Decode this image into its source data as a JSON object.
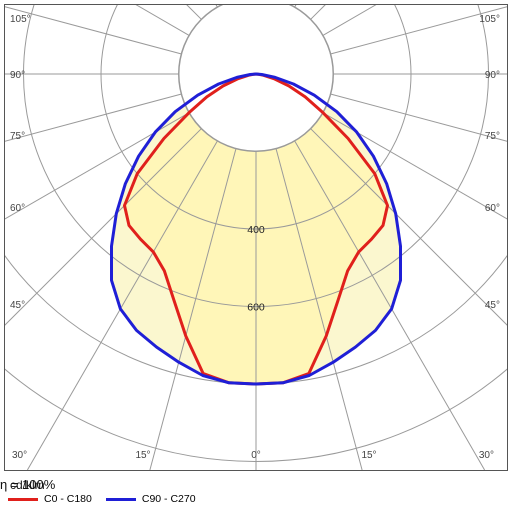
{
  "chart_data": {
    "type": "polar-line",
    "unit_label": "cd/klm",
    "efficiency_label": "η = 100%",
    "angle_ticks_left": [
      "105°",
      "90°",
      "75°",
      "60°",
      "45°",
      "30°",
      "15°"
    ],
    "angle_ticks_right": [
      "105°",
      "90°",
      "75°",
      "60°",
      "45°",
      "30°",
      "15°"
    ],
    "angle_tick_center": "0°",
    "radial_labels": [
      "400",
      "600"
    ],
    "radial_label_values": [
      400,
      600
    ],
    "ring_values": [
      200,
      400,
      600,
      800,
      1000
    ],
    "spoke_angles_deg": [
      15,
      30,
      45,
      60,
      75,
      90,
      105,
      120,
      135,
      150,
      165
    ],
    "grid": true,
    "series": [
      {
        "name": "C0 - C180",
        "color": "#e0201c",
        "angles_deg": [
          0,
          5,
          10,
          15,
          20,
          25,
          30,
          35,
          40,
          45,
          50,
          55,
          60,
          65,
          70,
          75,
          80,
          85,
          90
        ],
        "values": [
          800,
          800,
          785,
          700,
          620,
          560,
          530,
          520,
          510,
          480,
          400,
          290,
          200,
          140,
          90,
          50,
          20,
          5,
          0
        ]
      },
      {
        "name": "C90 - C270",
        "color": "#1f1fd6",
        "angles_deg": [
          0,
          5,
          10,
          15,
          20,
          25,
          30,
          35,
          40,
          45,
          50,
          55,
          60,
          65,
          70,
          75,
          80,
          85,
          90
        ],
        "values": [
          800,
          800,
          790,
          770,
          750,
          730,
          700,
          650,
          580,
          510,
          440,
          370,
          300,
          230,
          160,
          100,
          50,
          15,
          0
        ]
      }
    ]
  }
}
